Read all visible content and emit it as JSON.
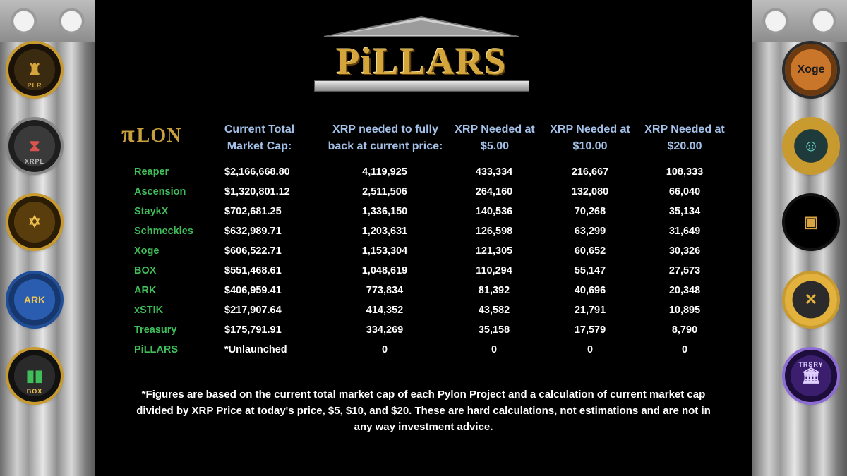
{
  "logo": {
    "title": "PiLLARS"
  },
  "pylon_logo": {
    "glyph": "π",
    "text": "LON"
  },
  "headers": {
    "market_cap_line1": "Current Total",
    "market_cap_line2": "Market Cap:",
    "xrp_needed_line1": "XRP needed to fully",
    "xrp_needed_line2": "back at current price:",
    "at5_line1": "XRP Needed at",
    "at5_line2": "$5.00",
    "at10_line1": "XRP Needed at",
    "at10_line2": "$10.00",
    "at20_line1": "XRP Needed at",
    "at20_line2": "$20.00"
  },
  "rows": [
    {
      "name": "Reaper",
      "cap": "$2,166,668.80",
      "xrp": "4,119,925",
      "at5": "433,334",
      "at10": "216,667",
      "at20": "108,333"
    },
    {
      "name": "Ascension",
      "cap": "$1,320,801.12",
      "xrp": "2,511,506",
      "at5": "264,160",
      "at10": "132,080",
      "at20": "66,040"
    },
    {
      "name": "StaykX",
      "cap": "$702,681.25",
      "xrp": "1,336,150",
      "at5": "140,536",
      "at10": "70,268",
      "at20": "35,134"
    },
    {
      "name": "Schmeckles",
      "cap": "$632,989.71",
      "xrp": "1,203,631",
      "at5": "126,598",
      "at10": "63,299",
      "at20": "31,649"
    },
    {
      "name": "Xoge",
      "cap": "$606,522.71",
      "xrp": "1,153,304",
      "at5": "121,305",
      "at10": "60,652",
      "at20": "30,326"
    },
    {
      "name": "BOX",
      "cap": "$551,468.61",
      "xrp": "1,048,619",
      "at5": "110,294",
      "at10": "55,147",
      "at20": "27,573"
    },
    {
      "name": "ARK",
      "cap": "$406,959.41",
      "xrp": "773,834",
      "at5": "81,392",
      "at10": "40,696",
      "at20": "20,348"
    },
    {
      "name": "xSTIK",
      "cap": "$217,907.64",
      "xrp": "414,352",
      "at5": "43,582",
      "at10": "21,791",
      "at20": "10,895"
    },
    {
      "name": "Treasury",
      "cap": "$175,791.91",
      "xrp": "334,269",
      "at5": "35,158",
      "at10": "17,579",
      "at20": "8,790"
    },
    {
      "name": "PiLLARS",
      "cap": "*Unlaunched",
      "xrp": "0",
      "at5": "0",
      "at10": "0",
      "at20": "0"
    }
  ],
  "footnote": {
    "line1": "*Figures are based on the current total market cap of each Pylon Project and a calculation of current market cap",
    "line2": "divided by XRP Price at today's price, $5, $10, and $20. These are hard calculations, not estimations and are not in",
    "line3": "any way investment advice."
  },
  "coins": {
    "plr": {
      "label": "PLR",
      "icon": "pillars-coin-icon"
    },
    "hourglass": {
      "label": "XRPL",
      "icon": "hourglass-coin-icon"
    },
    "ascension": {
      "icon": "ascension-coin-icon"
    },
    "ark": {
      "label": "ARK",
      "icon": "ark-coin-icon"
    },
    "box": {
      "label": "BOX",
      "icon": "box-coin-icon"
    },
    "xoge": {
      "label": "Xoge",
      "icon": "xoge-coin-icon"
    },
    "gold": {
      "icon": "gold-mask-coin-icon"
    },
    "wallet": {
      "icon": "wallet-coin-icon"
    },
    "xrp": {
      "icon": "xrp-coin-icon"
    },
    "treasury": {
      "label": "TRSRY",
      "icon": "treasury-coin-icon"
    }
  },
  "colors": {
    "background": "#000000",
    "header_text": "#a3c0e8",
    "name_text": "#3fbe5a",
    "value_text": "#ffffff",
    "gold": "#d4a53b"
  }
}
